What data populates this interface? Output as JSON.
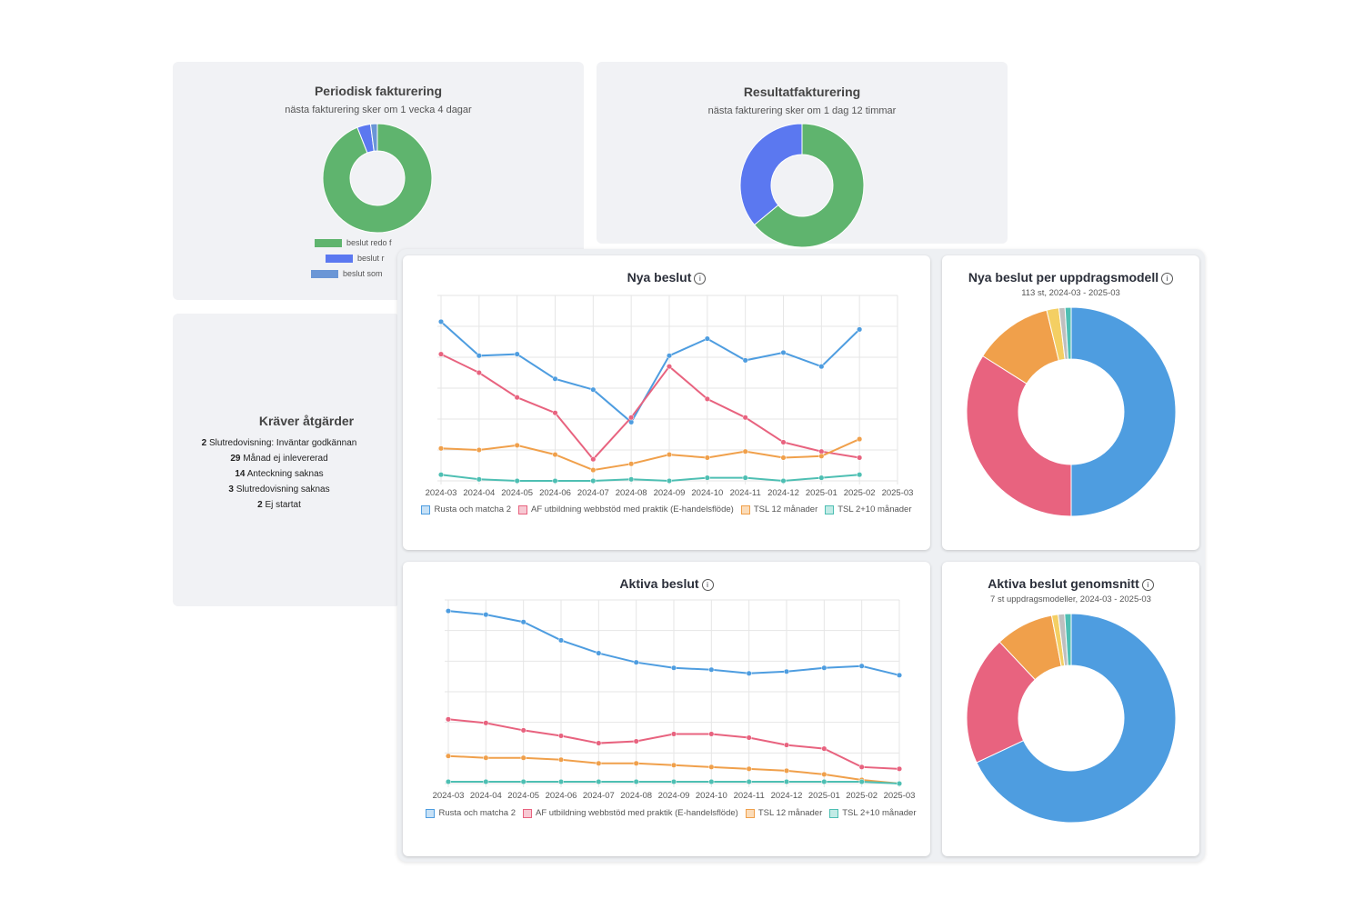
{
  "periodic": {
    "title": "Periodisk fakturering",
    "subtitle": "nästa fakturering sker om 1 vecka 4 dagar",
    "legend": [
      "beslut redo f",
      "beslut r",
      "beslut som"
    ],
    "slices": [
      0.94,
      0.04,
      0.02
    ],
    "colors": [
      "#5fb46e",
      "#5b78f0",
      "#6a96d6"
    ]
  },
  "result": {
    "title": "Resultatfakturering",
    "subtitle": "nästa fakturering sker om 1 dag 12 timmar",
    "slices": [
      0.64,
      0.36
    ],
    "colors": [
      "#5fb46e",
      "#5b78f0"
    ]
  },
  "requires": {
    "title": "Kräver åtgärder",
    "items": [
      {
        "count": "2",
        "text": "Slutredovisning: Inväntar godkännan"
      },
      {
        "count": "29",
        "text": "Månad ej inlevererad"
      },
      {
        "count": "14",
        "text": "Anteckning saknas"
      },
      {
        "count": "3",
        "text": "Slutredovisning saknas"
      },
      {
        "count": "2",
        "text": "Ej startat"
      }
    ]
  },
  "new_decisions": {
    "title": "Nya beslut",
    "info": "i",
    "legend": [
      "Rusta och matcha 2",
      "AF utbildning webbstöd med praktik (E-handelsflöde)",
      "TSL 12 månader",
      "TSL 2+10 månader"
    ]
  },
  "new_per_model": {
    "title": "Nya beslut per uppdragsmodell",
    "subtitle": "113 st, 2024-03 - 2025-03",
    "info": "i"
  },
  "active_decisions": {
    "title": "Aktiva beslut",
    "info": "i",
    "legend": [
      "Rusta och matcha 2",
      "AF utbildning webbstöd med praktik (E-handelsflöde)",
      "TSL 12 månader",
      "TSL 2+10 månader"
    ]
  },
  "active_avg": {
    "title": "Aktiva beslut genomsnitt",
    "subtitle": "7 st uppdragsmodeller, 2024-03 - 2025-03",
    "info": "i"
  },
  "chart_data": [
    {
      "type": "line",
      "title": "Nya beslut",
      "categories": [
        "2024-03",
        "2024-04",
        "2024-05",
        "2024-06",
        "2024-07",
        "2024-08",
        "2024-09",
        "2024-10",
        "2024-11",
        "2024-12",
        "2025-01",
        "2025-02",
        "2025-03"
      ],
      "ylim": [
        0,
        12
      ],
      "grid": true,
      "legend": "bottom",
      "series": [
        {
          "name": "Rusta och matcha 2",
          "color": "#4e9de0",
          "values": [
            10.3,
            8.1,
            8.2,
            6.6,
            5.9,
            3.8,
            8.1,
            9.2,
            7.8,
            8.3,
            7.4,
            9.8,
            null
          ]
        },
        {
          "name": "AF utbildning webbstöd med praktik (E-handelsflöde)",
          "color": "#e8637f",
          "values": [
            8.2,
            7.0,
            5.4,
            4.4,
            1.4,
            4.1,
            7.4,
            5.3,
            4.1,
            2.5,
            1.9,
            1.5,
            null
          ]
        },
        {
          "name": "TSL 12 månader",
          "color": "#f0a04b",
          "values": [
            2.1,
            2.0,
            2.3,
            1.7,
            0.7,
            1.1,
            1.7,
            1.5,
            1.9,
            1.5,
            1.6,
            2.7,
            null
          ]
        },
        {
          "name": "TSL 2+10 månader",
          "color": "#4ebfb3",
          "values": [
            0.4,
            0.1,
            0.0,
            0.0,
            0.0,
            0.1,
            0.0,
            0.2,
            0.2,
            0.0,
            0.2,
            0.4,
            null
          ]
        }
      ]
    },
    {
      "type": "pie",
      "title": "Nya beslut per uppdragsmodell",
      "labels": [
        "Rusta och matcha 2",
        "AF utbildning webbstöd med praktik (E-handelsflöde)",
        "TSL 12 månader",
        "TSL 2+10 månader",
        "",
        ""
      ],
      "values": [
        53,
        36,
        13,
        2,
        1,
        1
      ],
      "colors": [
        "#4e9de0",
        "#e8637f",
        "#f0a04b",
        "#f4cf63",
        "#bfbfbf",
        "#4ebfb3"
      ]
    },
    {
      "type": "line",
      "title": "Aktiva beslut",
      "categories": [
        "2024-03",
        "2024-04",
        "2024-05",
        "2024-06",
        "2024-07",
        "2024-08",
        "2024-09",
        "2024-10",
        "2024-11",
        "2024-12",
        "2025-01",
        "2025-02",
        "2025-03"
      ],
      "ylim": [
        0,
        100
      ],
      "grid": true,
      "legend": "bottom",
      "series": [
        {
          "name": "Rusta och matcha 2",
          "color": "#4e9de0",
          "values": [
            94,
            92,
            88,
            78,
            71,
            66,
            63,
            62,
            60,
            61,
            63,
            64,
            59
          ]
        },
        {
          "name": "AF utbildning webbstöd med praktik (E-handelsflöde)",
          "color": "#e8637f",
          "values": [
            35,
            33,
            29,
            26,
            22,
            23,
            27,
            27,
            25,
            21,
            19,
            9,
            8
          ]
        },
        {
          "name": "TSL 12 månader",
          "color": "#f0a04b",
          "values": [
            15,
            14,
            14,
            13,
            11,
            11,
            10,
            9,
            8,
            7,
            5,
            2,
            0
          ]
        },
        {
          "name": "TSL 2+10 månader",
          "color": "#4ebfb3",
          "values": [
            1,
            1,
            1,
            1,
            1,
            1,
            1,
            1,
            1,
            1,
            1,
            1,
            0
          ]
        }
      ]
    },
    {
      "type": "pie",
      "title": "Aktiva beslut genomsnitt",
      "labels": [
        "Rusta och matcha 2",
        "AF utbildning webbstöd med praktik (E-handelsflöde)",
        "TSL 12 månader",
        "TSL 2+10 månader",
        "",
        ""
      ],
      "values": [
        68,
        20,
        9,
        1,
        1,
        1
      ],
      "colors": [
        "#4e9de0",
        "#e8637f",
        "#f0a04b",
        "#f4cf63",
        "#bfbfbf",
        "#4ebfb3"
      ]
    }
  ]
}
